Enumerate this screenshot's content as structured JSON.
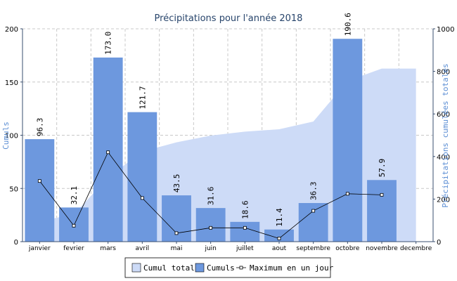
{
  "chart_data": {
    "type": "bar",
    "title": "Précipitations pour l'année 2018",
    "ylabel": "Cumuls",
    "y2label": "Précipitations cumulées totales",
    "categories": [
      "janvier",
      "fevrier",
      "mars",
      "avril",
      "mai",
      "juin",
      "juillet",
      "aout",
      "septembre",
      "octobre",
      "novembre",
      "decembre"
    ],
    "ylim": [
      0,
      200
    ],
    "y2lim": [
      0,
      1000
    ],
    "yticks": [
      "0",
      "50",
      "100",
      "150",
      "200"
    ],
    "y2ticks": [
      "0",
      "200",
      "400",
      "600",
      "800",
      "1000"
    ],
    "grid": true,
    "legend_position": "bottom",
    "series": [
      {
        "name": "Cumul total",
        "kind": "area",
        "axis": "right",
        "color": "#cddbf7",
        "values": [
          96.3,
          128.4,
          301.4,
          423.1,
          466.6,
          498.2,
          516.8,
          528.2,
          564.5,
          755.1,
          813.0,
          813.0
        ]
      },
      {
        "name": "Cumuls",
        "kind": "bar",
        "axis": "left",
        "color": "#6d98de",
        "values": [
          96.3,
          32.1,
          173.0,
          121.7,
          43.5,
          31.6,
          18.6,
          11.4,
          36.3,
          190.6,
          57.9,
          null
        ],
        "labels": [
          "96.3",
          "32.1",
          "173.0",
          "121.7",
          "43.5",
          "31.6",
          "18.6",
          "11.4",
          "36.3",
          "190.6",
          "57.9",
          ""
        ]
      },
      {
        "name": "Maximum en un jour",
        "kind": "line",
        "axis": "left",
        "color": "#000000",
        "values": [
          57,
          15,
          84,
          41,
          8,
          13,
          13,
          3,
          29,
          45,
          44,
          null
        ]
      }
    ]
  },
  "colors": {
    "axis": "#3a4f6f",
    "title": "#27446b",
    "ylabel": "#5b8ed4",
    "grid": "#c8c8c8"
  }
}
